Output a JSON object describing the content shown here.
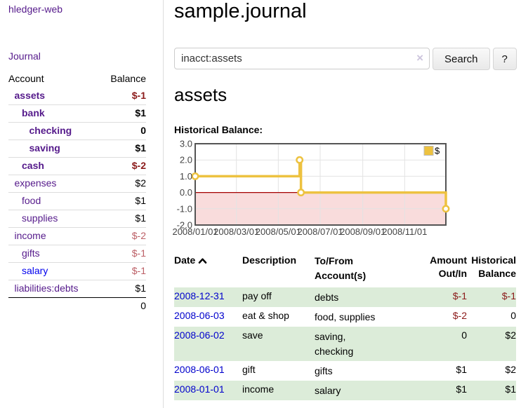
{
  "colors": {
    "link_purple": "#551a8b",
    "link_blue": "#0000ee",
    "date_link_blue": "#0000cc",
    "negative_strong": "#8b1a1a",
    "negative_soft": "#bc5f66",
    "row_shade_green": "#dcecd9",
    "chart_gold": "#edc240",
    "chart_negative_region": "#f9dcdc",
    "chart_zero_line": "#a40000"
  },
  "sidebar": {
    "brand": "hledger-web",
    "journal_link": "Journal",
    "accounts_header": {
      "account": "Account",
      "balance": "Balance"
    },
    "accounts": [
      {
        "name": "assets",
        "level": 1,
        "balance": "$-1",
        "bold": true,
        "neg": "strong"
      },
      {
        "name": "bank",
        "level": 2,
        "balance": "$1",
        "bold": true
      },
      {
        "name": "checking",
        "level": 3,
        "balance": "0",
        "bold": true
      },
      {
        "name": "saving",
        "level": 3,
        "balance": "$1",
        "bold": true
      },
      {
        "name": "cash",
        "level": 2,
        "balance": "$-2",
        "bold": true,
        "neg": "strong"
      },
      {
        "name": "expenses",
        "level": 1,
        "balance": "$2"
      },
      {
        "name": "food",
        "level": 2,
        "balance": "$1"
      },
      {
        "name": "supplies",
        "level": 2,
        "balance": "$1"
      },
      {
        "name": "income",
        "level": 1,
        "balance": "$-2",
        "neg": "soft"
      },
      {
        "name": "gifts",
        "level": 2,
        "balance": "$-1",
        "neg": "soft"
      },
      {
        "name": "salary",
        "level": 2,
        "balance": "$-1",
        "neg": "soft",
        "link_color": "blue"
      },
      {
        "name": "liabilities:debts",
        "level": 1,
        "balance": "$1"
      }
    ],
    "total": "0"
  },
  "header": {
    "title": "sample.journal"
  },
  "search": {
    "value": "inacct:assets",
    "clear_icon": "×",
    "button_label": "Search",
    "help_label": "?"
  },
  "account_page": {
    "heading": "assets",
    "chart_title": "Historical Balance:"
  },
  "chart_data": {
    "type": "line",
    "title": "Historical Balance:",
    "legend_label": "$",
    "legend_position": "top-right",
    "grid": true,
    "ylim": [
      -2.0,
      3.0
    ],
    "ytick_labels": [
      "3.0",
      "2.0",
      "1.0",
      "0.0",
      "-1.0",
      "-2.0"
    ],
    "xticks": [
      {
        "label": "2008/01/01",
        "day": 0
      },
      {
        "label": "2008/03/01",
        "day": 60
      },
      {
        "label": "2008/05/01",
        "day": 121
      },
      {
        "label": "2008/07/01",
        "day": 182
      },
      {
        "label": "2008/09/01",
        "day": 244
      },
      {
        "label": "2008/11/01",
        "day": 305
      }
    ],
    "x_day_range": [
      0,
      365
    ],
    "series": [
      {
        "name": "$",
        "color": "#edc240",
        "style": "step",
        "points": [
          {
            "date": "2008-01-01",
            "day": 0,
            "value": 1
          },
          {
            "date": "2008-06-01",
            "day": 152,
            "value": 2
          },
          {
            "date": "2008-06-03",
            "day": 154,
            "value": 0
          },
          {
            "date": "2008-12-31",
            "day": 365,
            "value": -1
          }
        ]
      }
    ],
    "negative_region_color": "#f9dcdc",
    "zero_line_color": "#a40000"
  },
  "register": {
    "columns": [
      "Date",
      "Description",
      "To/From Account(s)",
      "Amount Out/In",
      "Historical Balance"
    ],
    "rows": [
      {
        "date": "2008-12-31",
        "description": "pay off",
        "accounts": "debts",
        "amount": "$-1",
        "amount_negative": true,
        "balance": "$-1",
        "balance_negative": true,
        "shaded": true
      },
      {
        "date": "2008-06-03",
        "description": "eat & shop",
        "accounts": "food, supplies",
        "amount": "$-2",
        "amount_negative": true,
        "balance": "0",
        "balance_negative": false,
        "shaded": false
      },
      {
        "date": "2008-06-02",
        "description": "save",
        "accounts": "saving, checking",
        "amount": "0",
        "amount_negative": false,
        "balance": "$2",
        "balance_negative": false,
        "shaded": true
      },
      {
        "date": "2008-06-01",
        "description": "gift",
        "accounts": "gifts",
        "amount": "$1",
        "amount_negative": false,
        "balance": "$2",
        "balance_negative": false,
        "shaded": false
      },
      {
        "date": "2008-01-01",
        "description": "income",
        "accounts": "salary",
        "amount": "$1",
        "amount_negative": false,
        "balance": "$1",
        "balance_negative": false,
        "shaded": true
      }
    ]
  }
}
